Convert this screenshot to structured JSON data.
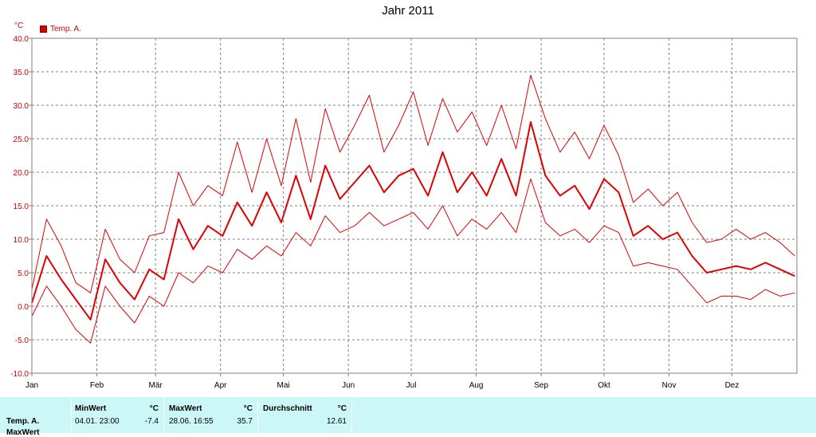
{
  "chart_data": {
    "type": "line",
    "title": "Jahr 2011",
    "y_unit": "°C",
    "ylim": [
      -10,
      40
    ],
    "y_ticks": [
      -10,
      -5,
      0,
      5,
      10,
      15,
      20,
      25,
      30,
      35,
      40
    ],
    "y_tick_labels": [
      "-10.0",
      "-5.0",
      "0.0",
      "5.0",
      "10.0",
      "15.0",
      "20.0",
      "25.0",
      "30.0",
      "35.0",
      "40.0"
    ],
    "x_unit": "day of year",
    "xlim": [
      1,
      366
    ],
    "x_tick_labels": [
      "Jan",
      "Feb",
      "Mär",
      "Apr",
      "Mai",
      "Jun",
      "Jul",
      "Aug",
      "Sep",
      "Okt",
      "Nov",
      "Dez"
    ],
    "x_tick_positions": [
      1,
      32,
      60,
      91,
      121,
      152,
      182,
      213,
      244,
      274,
      305,
      335
    ],
    "grid": true,
    "legend_position": "top-left",
    "series": [
      {
        "name": "Temp. A.",
        "role": "daily mean",
        "color": "#e00000",
        "x": [
          1,
          8,
          15,
          22,
          29,
          36,
          43,
          50,
          57,
          64,
          71,
          78,
          85,
          92,
          99,
          106,
          113,
          120,
          127,
          134,
          141,
          148,
          155,
          162,
          169,
          176,
          183,
          190,
          197,
          204,
          211,
          218,
          225,
          232,
          239,
          246,
          253,
          260,
          267,
          274,
          281,
          288,
          295,
          302,
          309,
          316,
          323,
          330,
          337,
          344,
          351,
          358,
          365
        ],
        "y": [
          0.5,
          7.5,
          4.0,
          1.0,
          -2.0,
          7.0,
          3.5,
          1.0,
          5.5,
          4.0,
          13.0,
          8.5,
          12.0,
          10.5,
          15.5,
          12.0,
          17.0,
          12.5,
          19.5,
          13.0,
          21.0,
          16.0,
          18.5,
          21.0,
          17.0,
          19.5,
          20.5,
          16.5,
          23.0,
          17.0,
          20.0,
          16.5,
          22.0,
          16.5,
          27.5,
          19.5,
          16.5,
          18.0,
          14.5,
          19.0,
          17.0,
          10.5,
          12.0,
          10.0,
          11.0,
          7.5,
          5.0,
          5.5,
          6.0,
          5.5,
          6.5,
          5.5,
          4.5
        ]
      },
      {
        "name": "",
        "role": "daily maximum",
        "color": "#e00000",
        "x": [
          1,
          8,
          15,
          22,
          29,
          36,
          43,
          50,
          57,
          64,
          71,
          78,
          85,
          92,
          99,
          106,
          113,
          120,
          127,
          134,
          141,
          148,
          155,
          162,
          169,
          176,
          183,
          190,
          197,
          204,
          211,
          218,
          225,
          232,
          239,
          246,
          253,
          260,
          267,
          274,
          281,
          288,
          295,
          302,
          309,
          316,
          323,
          330,
          337,
          344,
          351,
          358,
          365
        ],
        "y": [
          2.5,
          13.0,
          9.0,
          3.5,
          2.0,
          11.5,
          7.0,
          5.0,
          10.5,
          11.0,
          20.0,
          15.0,
          18.0,
          16.5,
          24.5,
          17.0,
          25.0,
          18.0,
          28.0,
          18.5,
          29.5,
          23.0,
          27.0,
          31.5,
          23.0,
          27.0,
          32.0,
          24.0,
          31.0,
          26.0,
          29.0,
          24.0,
          30.0,
          23.5,
          34.5,
          28.0,
          23.0,
          26.0,
          22.0,
          27.0,
          22.5,
          15.5,
          17.5,
          15.0,
          17.0,
          12.5,
          9.5,
          10.0,
          11.5,
          10.0,
          11.0,
          9.5,
          7.5
        ]
      },
      {
        "name": "",
        "role": "daily minimum",
        "color": "#e00000",
        "x": [
          1,
          8,
          15,
          22,
          29,
          36,
          43,
          50,
          57,
          64,
          71,
          78,
          85,
          92,
          99,
          106,
          113,
          120,
          127,
          134,
          141,
          148,
          155,
          162,
          169,
          176,
          183,
          190,
          197,
          204,
          211,
          218,
          225,
          232,
          239,
          246,
          253,
          260,
          267,
          274,
          281,
          288,
          295,
          302,
          309,
          316,
          323,
          330,
          337,
          344,
          351,
          358,
          365
        ],
        "y": [
          -1.5,
          3.0,
          0.0,
          -3.5,
          -5.5,
          3.0,
          0.0,
          -2.5,
          1.5,
          0.0,
          5.0,
          3.5,
          6.0,
          5.0,
          8.5,
          7.0,
          9.0,
          7.5,
          11.0,
          9.0,
          13.5,
          11.0,
          12.0,
          14.0,
          12.0,
          13.0,
          14.0,
          11.5,
          15.0,
          10.5,
          13.0,
          11.5,
          14.0,
          11.0,
          19.0,
          12.5,
          10.5,
          11.5,
          9.5,
          12.0,
          11.0,
          6.0,
          6.5,
          6.0,
          5.5,
          3.0,
          0.5,
          1.5,
          1.5,
          1.0,
          2.5,
          1.5,
          2.0
        ]
      }
    ]
  },
  "stats": {
    "row_label": "Temp. A.",
    "row_label_2": "MaxWert",
    "min": {
      "header": "MinWert",
      "unit": "°C",
      "timestamp": "04.01.  23:00",
      "value": "-7.4"
    },
    "max": {
      "header": "MaxWert",
      "unit": "°C",
      "timestamp": "28.06.  16:55",
      "value": "35.7"
    },
    "avg": {
      "header": "Durchschnitt",
      "unit": "°C",
      "value": "12.61"
    }
  }
}
